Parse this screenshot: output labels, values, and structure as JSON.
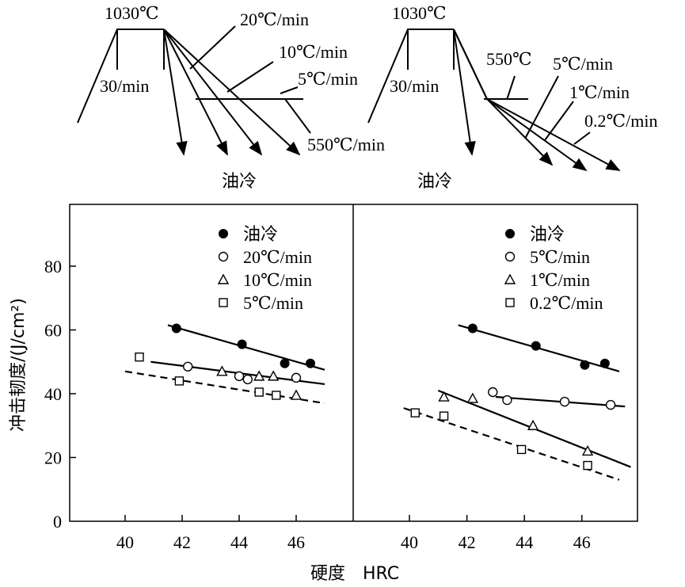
{
  "schematic": {
    "left": {
      "temp": "1030℃",
      "hold": "30/min",
      "rates": [
        "20℃/min",
        "10℃/min",
        "5℃/min",
        "550℃/min"
      ],
      "quench": "油冷"
    },
    "right": {
      "temp": "1030℃",
      "hold": "30/min",
      "temp2": "550℃",
      "rates": [
        "5℃/min",
        "1℃/min",
        "0.2℃/min"
      ],
      "quench": "油冷"
    }
  },
  "chart_data": [
    {
      "type": "scatter",
      "ylabel": "冲击韧度/(J/cm²)",
      "xlabel": "硬度　HRC",
      "xticks": [
        40,
        42,
        44,
        46
      ],
      "yticks": [
        0,
        20,
        40,
        60,
        80
      ],
      "xlim": [
        38,
        48
      ],
      "ylim": [
        0,
        99
      ],
      "legend": "top-right",
      "series": [
        {
          "name": "油冷",
          "marker": "filled-circle",
          "x": [
            41.8,
            44.1,
            45.6,
            46.5
          ],
          "y": [
            60.5,
            55.5,
            49.5,
            49.5
          ]
        },
        {
          "name": "20℃/min",
          "marker": "open-circle",
          "x": [
            42.2,
            44.0,
            44.3,
            46.0
          ],
          "y": [
            48.5,
            45.5,
            44.5,
            45.0
          ]
        },
        {
          "name": "10℃/min",
          "marker": "triangle",
          "x": [
            43.4,
            44.7,
            45.2,
            46.0
          ],
          "y": [
            47.0,
            45.5,
            45.5,
            39.5
          ]
        },
        {
          "name": "5℃/min",
          "marker": "square",
          "x": [
            40.5,
            41.9,
            44.7,
            45.3
          ],
          "y": [
            51.5,
            44.0,
            40.5,
            39.5
          ]
        }
      ],
      "fit_lines": [
        {
          "style": "solid",
          "x": [
            41.5,
            47.0
          ],
          "y": [
            61.5,
            47.5
          ]
        },
        {
          "style": "solid",
          "x": [
            40.9,
            47.0
          ],
          "y": [
            50.0,
            43.0
          ]
        },
        {
          "style": "dashed",
          "x": [
            40.0,
            47.0
          ],
          "y": [
            47.0,
            37.0
          ]
        }
      ]
    },
    {
      "type": "scatter",
      "xticks": [
        40,
        42,
        44,
        46
      ],
      "xlim": [
        38,
        48
      ],
      "ylim": [
        0,
        99
      ],
      "legend": "top-right",
      "series": [
        {
          "name": "油冷",
          "marker": "filled-circle",
          "x": [
            42.2,
            44.4,
            46.1,
            46.8
          ],
          "y": [
            60.5,
            55.0,
            49.0,
            49.5
          ]
        },
        {
          "name": "5℃/min",
          "marker": "open-circle",
          "x": [
            42.9,
            43.4,
            45.4,
            47.0
          ],
          "y": [
            40.5,
            38.0,
            37.5,
            36.5
          ]
        },
        {
          "name": "1℃/min",
          "marker": "triangle",
          "x": [
            41.2,
            42.2,
            44.3,
            46.2
          ],
          "y": [
            39.0,
            38.5,
            30.0,
            22.0
          ]
        },
        {
          "name": "0.2℃/min",
          "marker": "square",
          "x": [
            40.2,
            41.2,
            43.9,
            46.2
          ],
          "y": [
            34.0,
            33.0,
            22.5,
            17.5
          ]
        }
      ],
      "fit_lines": [
        {
          "style": "solid",
          "x": [
            41.7,
            47.3
          ],
          "y": [
            61.5,
            47.0
          ]
        },
        {
          "style": "solid",
          "x": [
            43.0,
            47.5
          ],
          "y": [
            39.0,
            36.0
          ]
        },
        {
          "style": "solid",
          "x": [
            41.0,
            47.7
          ],
          "y": [
            41.0,
            17.0
          ]
        },
        {
          "style": "dashed",
          "x": [
            39.8,
            47.3
          ],
          "y": [
            35.5,
            13.0
          ]
        }
      ]
    }
  ]
}
